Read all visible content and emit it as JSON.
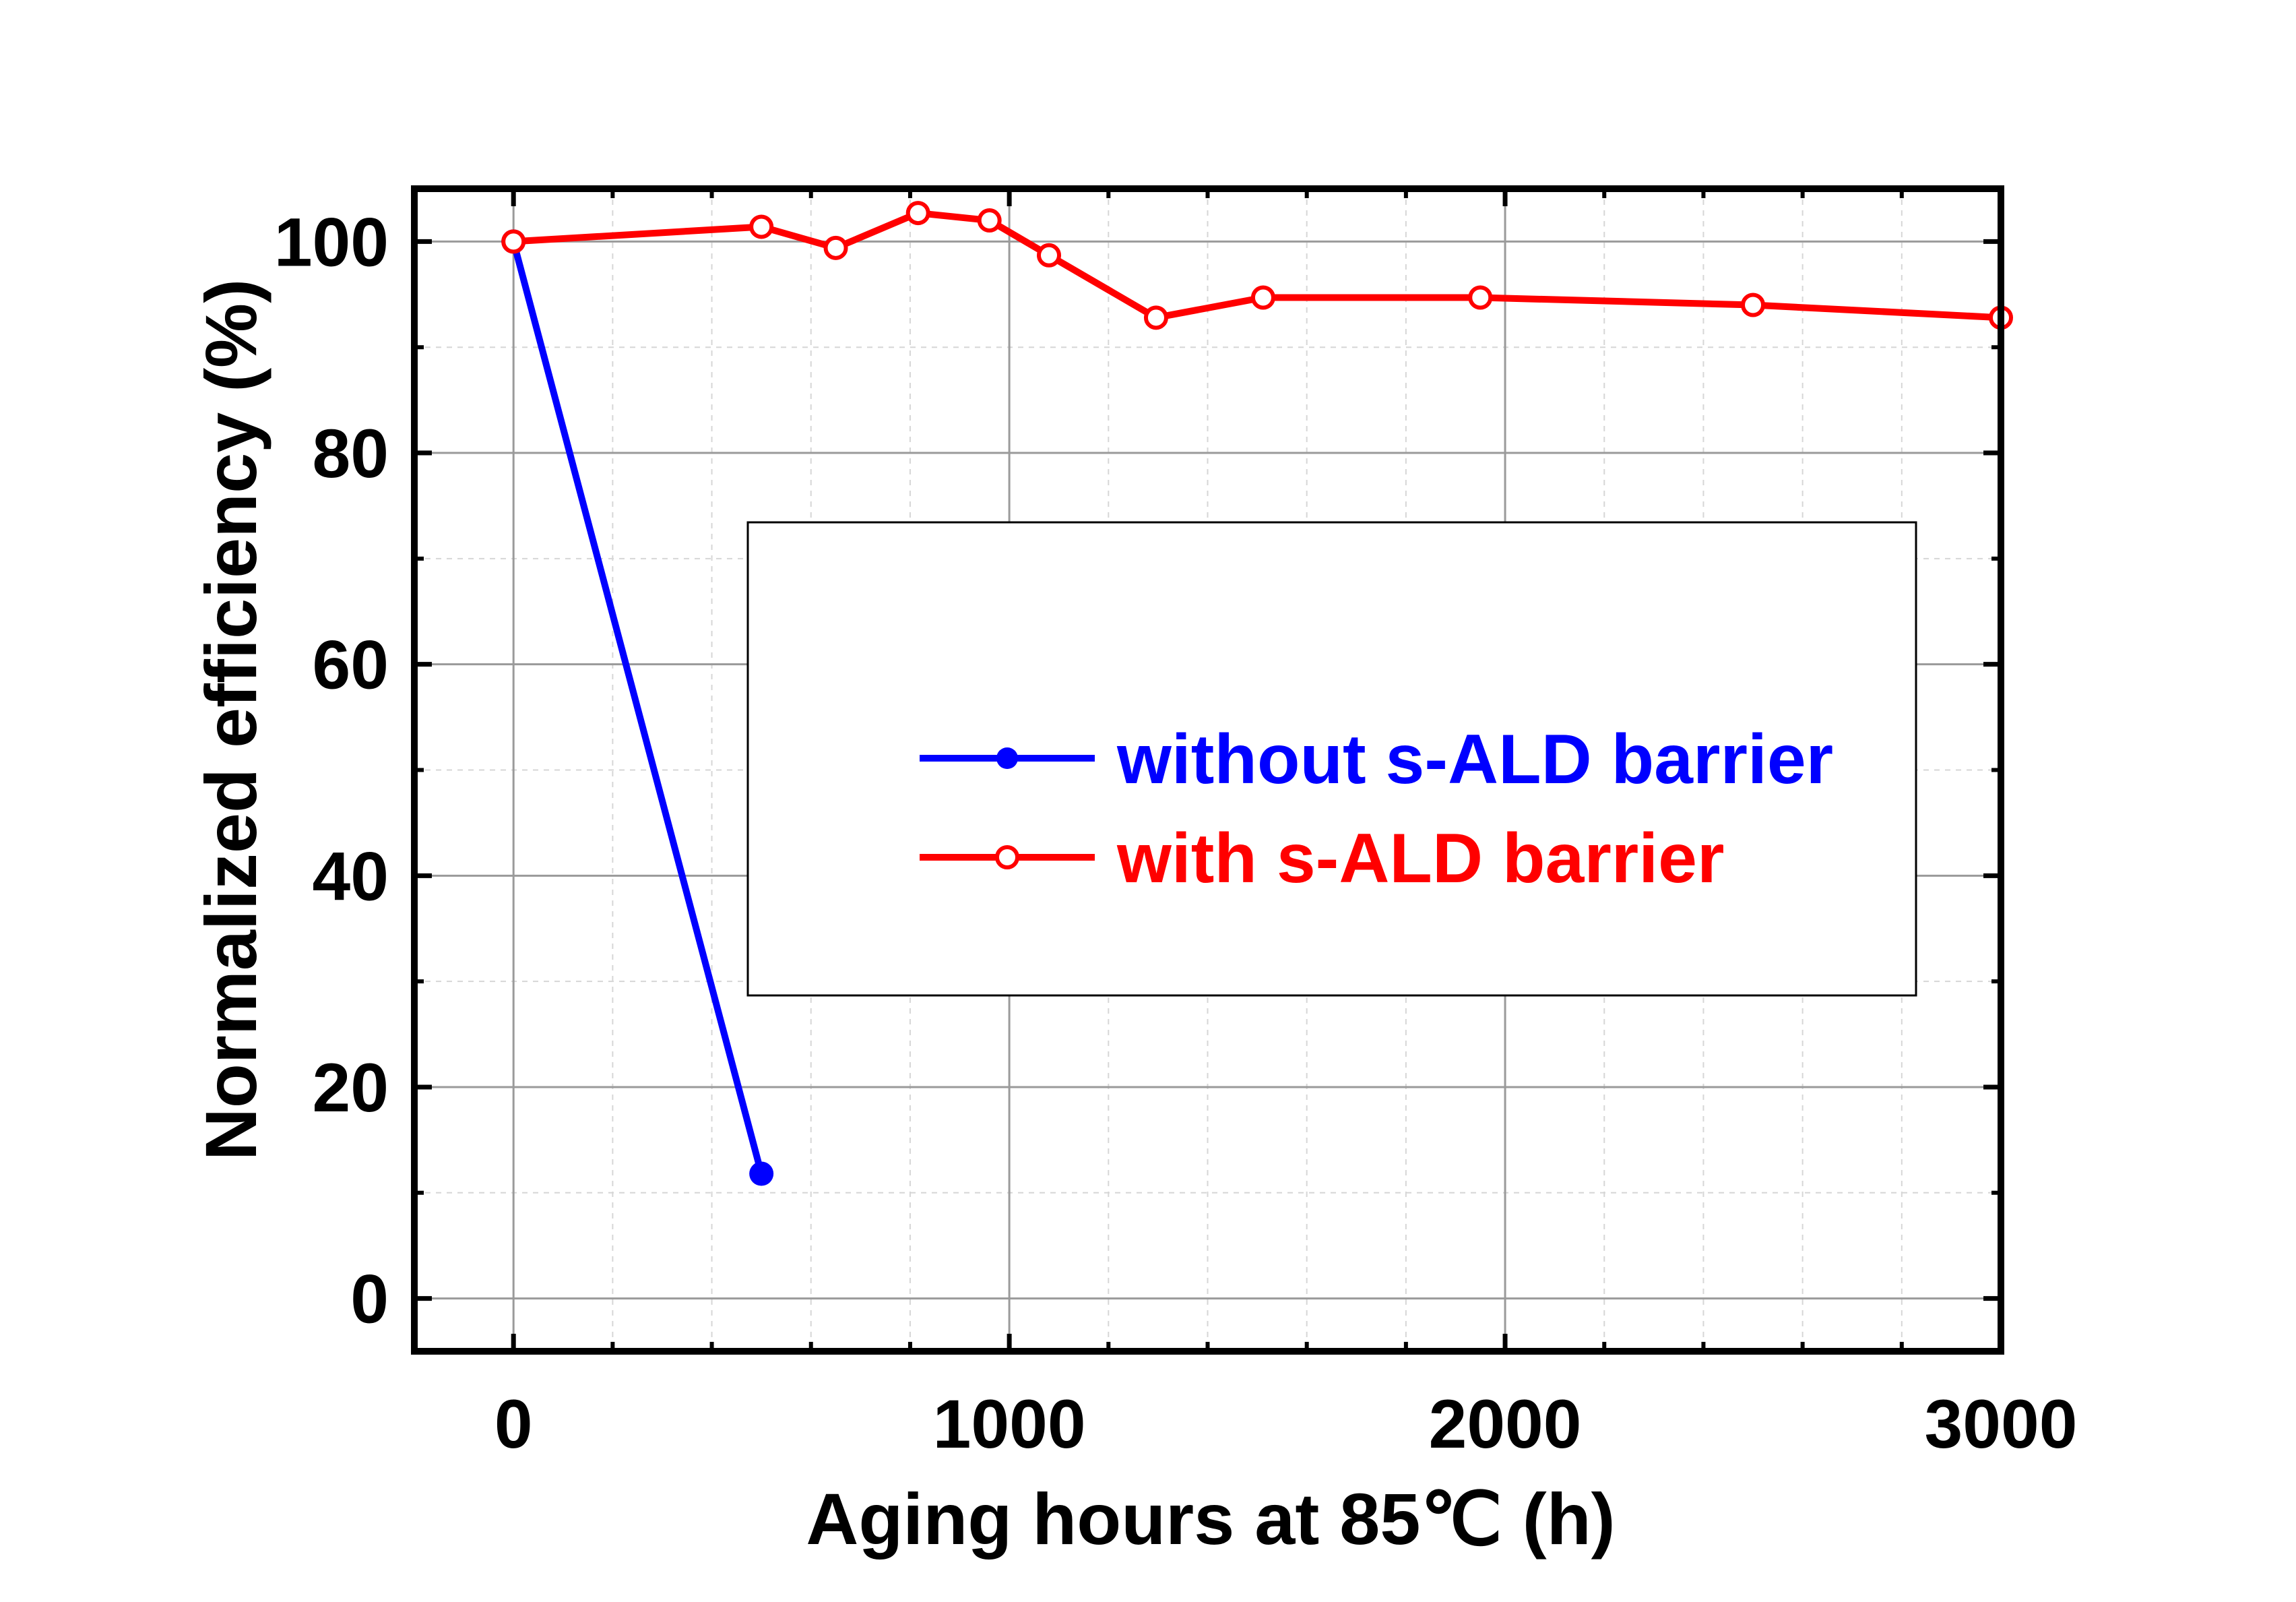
{
  "chart_data": {
    "type": "line",
    "xlabel": "Aging hours at 85℃ (h)",
    "ylabel": "Normalized efficiency (%)",
    "xlim": [
      -200,
      3000
    ],
    "ylim": [
      -5,
      105
    ],
    "x_ticks": [
      0,
      1000,
      2000,
      3000
    ],
    "y_ticks": [
      0,
      20,
      40,
      60,
      80,
      100
    ],
    "grid": true,
    "legend_position": "center-right",
    "series": [
      {
        "name": "without s-ALD barrier",
        "color": "#0000ff",
        "marker": "filled-circle",
        "x": [
          0,
          500
        ],
        "y": [
          100,
          11.8
        ]
      },
      {
        "name": "with s-ALD barrier",
        "color": "#ff0000",
        "marker": "open-circle",
        "x": [
          0,
          500,
          650,
          816,
          960,
          1080,
          1296,
          1512,
          1950,
          2500,
          3000
        ],
        "y": [
          100,
          101.4,
          99.4,
          102.7,
          102.0,
          98.7,
          92.8,
          94.7,
          94.7,
          94.0,
          92.8
        ]
      }
    ]
  }
}
